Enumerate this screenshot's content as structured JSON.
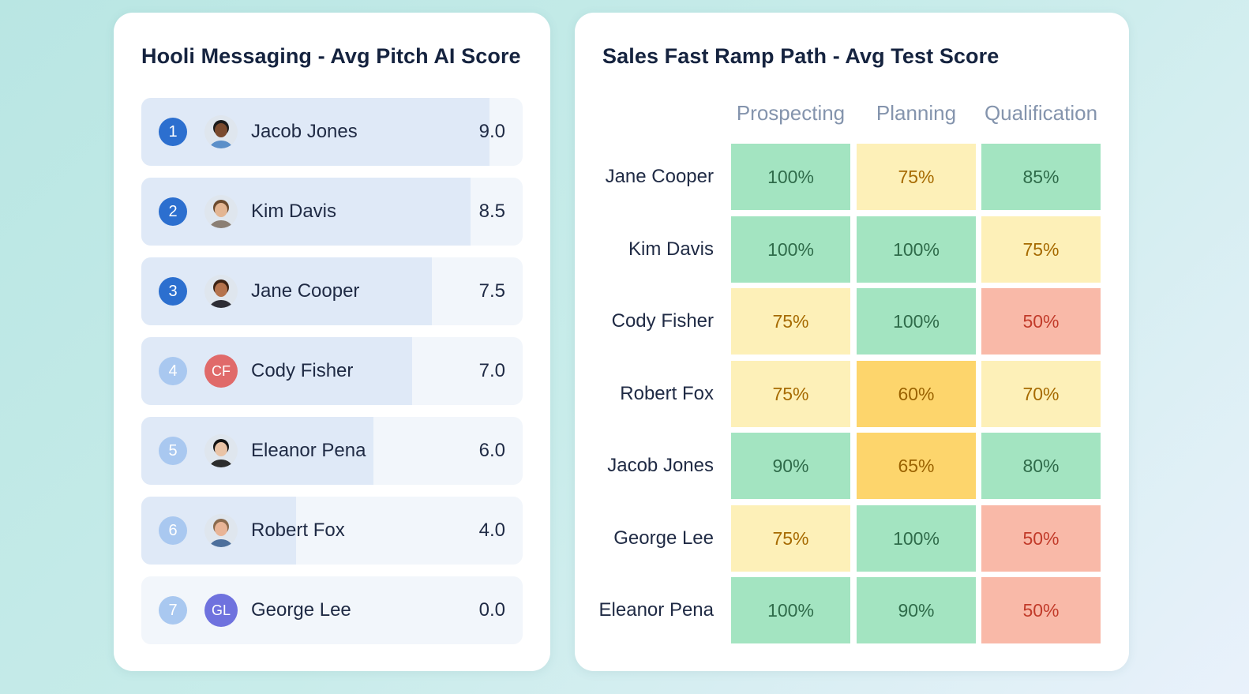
{
  "left_panel": {
    "title": "Hooli Messaging - Avg Pitch AI Score"
  },
  "right_panel": {
    "title": "Sales Fast Ramp Path - Avg Test Score"
  },
  "colors": {
    "rank_top": "#2c6fcf",
    "rank_low": "#a9c8f0",
    "bar_fill": "#dfe9f7",
    "bar_track": "#f2f6fb",
    "heat_green": "#a3e4c1",
    "heat_light_yellow": "#fdf0b8",
    "heat_yellow": "#fdd56c",
    "heat_red": "#f9b9a8"
  },
  "chart_data": [
    {
      "type": "bar",
      "title": "Hooli Messaging - Avg Pitch AI Score",
      "orientation": "horizontal",
      "xlim": [
        0,
        10
      ],
      "categories": [
        "Jacob Jones",
        "Kim Davis",
        "Jane Cooper",
        "Cody Fisher",
        "Eleanor Pena",
        "Robert Fox",
        "George Lee"
      ],
      "ranks": [
        "1",
        "2",
        "3",
        "4",
        "5",
        "6",
        "7"
      ],
      "values": [
        9.0,
        8.5,
        7.5,
        7.0,
        6.0,
        4.0,
        0.0
      ],
      "value_labels": [
        "9.0",
        "8.5",
        "7.5",
        "7.0",
        "6.0",
        "4.0",
        "0.0"
      ],
      "avatars": [
        {
          "kind": "photo",
          "icon": "person-photo-icon",
          "skin": "#7a4a2e",
          "hair": "#1b1b1b",
          "shirt": "#5b8fc9"
        },
        {
          "kind": "photo",
          "icon": "person-photo-icon",
          "skin": "#e3b592",
          "hair": "#6b4a2e",
          "shirt": "#8b7f74"
        },
        {
          "kind": "photo",
          "icon": "person-photo-icon",
          "skin": "#b5734d",
          "hair": "#3d2314",
          "shirt": "#2d2d35"
        },
        {
          "kind": "initials",
          "text": "CF",
          "color": "#e06a6a"
        },
        {
          "kind": "photo",
          "icon": "person-photo-icon",
          "skin": "#e9c3a6",
          "hair": "#141414",
          "shirt": "#2d2d2d"
        },
        {
          "kind": "photo",
          "icon": "person-photo-icon",
          "skin": "#e8b496",
          "hair": "#8a6a4d",
          "shirt": "#4d6f9c"
        },
        {
          "kind": "initials",
          "text": "GL",
          "color": "#6f72de"
        }
      ]
    },
    {
      "type": "heatmap",
      "title": "Sales Fast Ramp Path - Avg Test Score",
      "columns": [
        "Prospecting",
        "Planning",
        "Qualification"
      ],
      "rows": [
        "Jane Cooper",
        "Kim Davis",
        "Cody Fisher",
        "Robert Fox",
        "Jacob Jones",
        "George Lee",
        "Eleanor Pena"
      ],
      "values": [
        [
          100,
          75,
          85
        ],
        [
          100,
          100,
          75
        ],
        [
          75,
          100,
          50
        ],
        [
          75,
          60,
          70
        ],
        [
          90,
          65,
          80
        ],
        [
          75,
          100,
          50
        ],
        [
          100,
          90,
          50
        ]
      ],
      "cell_labels": [
        [
          "100%",
          "75%",
          "85%"
        ],
        [
          "100%",
          "100%",
          "75%"
        ],
        [
          "75%",
          "100%",
          "50%"
        ],
        [
          "75%",
          "60%",
          "70%"
        ],
        [
          "90%",
          "65%",
          "80%"
        ],
        [
          "75%",
          "100%",
          "50%"
        ],
        [
          "100%",
          "90%",
          "50%"
        ]
      ]
    }
  ]
}
